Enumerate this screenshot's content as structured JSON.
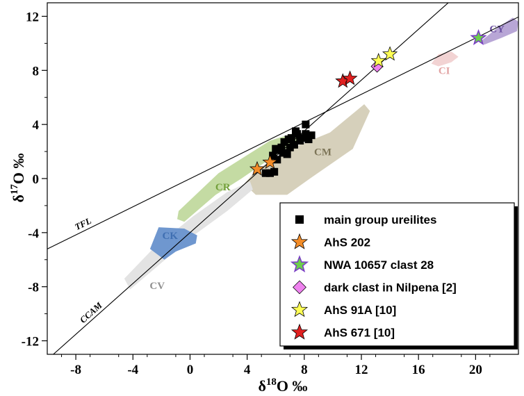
{
  "chart_data": {
    "type": "scatter",
    "xlabel": "δ18O ‰",
    "ylabel": "δ17O ‰",
    "xlim": [
      -10,
      23
    ],
    "ylim": [
      -13,
      13
    ],
    "x_ticks": [
      -8,
      -4,
      0,
      4,
      8,
      12,
      16,
      20
    ],
    "y_ticks": [
      -12,
      -8,
      -4,
      0,
      4,
      8,
      12
    ],
    "x_tick_labels": [
      "-8",
      "-4",
      "0",
      "4",
      "8",
      "12",
      "16",
      "20"
    ],
    "y_tick_labels": [
      "-12",
      "-8",
      "-4",
      "0",
      "4",
      "8",
      "12"
    ],
    "reference_lines": [
      {
        "name": "TFL",
        "slope": 0.52,
        "intercept": -0.01
      },
      {
        "name": "CCAM",
        "slope": 0.94,
        "intercept": -4.0
      }
    ],
    "regions": [
      {
        "name": "CY",
        "color": "#b8a6d6",
        "label_color": "#6a4fa0",
        "polygon": [
          [
            20.3,
            10.1
          ],
          [
            21.6,
            11.2
          ],
          [
            22.6,
            11.9
          ],
          [
            23.0,
            11.6
          ],
          [
            22.9,
            10.9
          ],
          [
            21.8,
            10.4
          ],
          [
            20.6,
            9.9
          ]
        ]
      },
      {
        "name": "CI",
        "color": "#f2d3d3",
        "label_color": "#e2a3a3",
        "polygon": [
          [
            16.9,
            8.5
          ],
          [
            17.4,
            9.2
          ],
          [
            18.3,
            9.4
          ],
          [
            18.8,
            9.0
          ],
          [
            18.3,
            8.6
          ],
          [
            17.4,
            8.3
          ]
        ]
      },
      {
        "name": "CM",
        "color": "#d6d0bb",
        "label_color": "#7d7558",
        "polygon": [
          [
            4.6,
            0.6
          ],
          [
            7.0,
            2.2
          ],
          [
            9.8,
            3.4
          ],
          [
            12.2,
            5.5
          ],
          [
            12.6,
            5.0
          ],
          [
            11.4,
            2.2
          ],
          [
            8.4,
            0.0
          ],
          [
            6.8,
            -1.2
          ],
          [
            4.6,
            -1.2
          ],
          [
            3.8,
            -0.4
          ]
        ]
      },
      {
        "name": "CR",
        "color": "#c4dba3",
        "label_color": "#74a13c",
        "polygon": [
          [
            -0.8,
            -2.4
          ],
          [
            2.0,
            0.4
          ],
          [
            5.6,
            2.8
          ],
          [
            7.4,
            3.4
          ],
          [
            7.6,
            2.8
          ],
          [
            5.8,
            1.6
          ],
          [
            3.6,
            0.0
          ],
          [
            1.8,
            -1.2
          ],
          [
            -0.4,
            -3.2
          ],
          [
            -0.9,
            -3.0
          ]
        ]
      },
      {
        "name": "CV",
        "color": "#e3e3e3",
        "label_color": "#909090",
        "polygon": [
          [
            -4.2,
            -8.2
          ],
          [
            -2.4,
            -6.6
          ],
          [
            0.0,
            -4.4
          ],
          [
            2.6,
            -2.4
          ],
          [
            4.4,
            -0.8
          ],
          [
            4.2,
            -0.2
          ],
          [
            2.6,
            -1.0
          ],
          [
            0.2,
            -2.8
          ],
          [
            -2.6,
            -5.2
          ],
          [
            -4.6,
            -7.4
          ]
        ]
      },
      {
        "name": "CK",
        "color": "#6f97cf",
        "label_color": "#3f6fb2",
        "polygon": [
          [
            -2.8,
            -5.2
          ],
          [
            -2.2,
            -3.6
          ],
          [
            -0.4,
            -3.7
          ],
          [
            0.5,
            -4.2
          ],
          [
            0.4,
            -4.8
          ],
          [
            -1.0,
            -5.4
          ],
          [
            -1.8,
            -6.0
          ]
        ]
      }
    ],
    "series": [
      {
        "name": "main group ureilites",
        "marker": "square",
        "color": "#000000",
        "points": [
          [
            5.3,
            0.4
          ],
          [
            5.6,
            0.4
          ],
          [
            5.9,
            0.5
          ],
          [
            6.1,
            1.4
          ],
          [
            5.8,
            1.7
          ],
          [
            6.2,
            2.1
          ],
          [
            6.8,
            1.8
          ],
          [
            6.4,
            2.3
          ],
          [
            6.6,
            2.7
          ],
          [
            6.9,
            2.9
          ],
          [
            7.1,
            3.0
          ],
          [
            7.3,
            2.5
          ],
          [
            7.5,
            3.3
          ],
          [
            7.7,
            2.8
          ],
          [
            7.9,
            3.0
          ],
          [
            8.1,
            3.3
          ],
          [
            8.3,
            2.9
          ],
          [
            7.4,
            3.5
          ],
          [
            7.0,
            2.3
          ],
          [
            6.5,
            1.9
          ],
          [
            8.1,
            4.0
          ],
          [
            8.5,
            3.2
          ],
          [
            6.0,
            2.2
          ]
        ]
      },
      {
        "name": "AhS 202",
        "marker": "star",
        "color": "#f28c28",
        "points": [
          [
            4.7,
            0.7
          ],
          [
            5.6,
            1.2
          ]
        ]
      },
      {
        "name": "NWA 10657 clast 28",
        "marker": "star",
        "color": "#6ccf4a",
        "edge": "#7a3fc4",
        "points": [
          [
            20.2,
            10.4
          ]
        ]
      },
      {
        "name": "dark clast in Nilpena [2]",
        "marker": "diamond",
        "color": "#ee82ee",
        "points": [
          [
            13.1,
            8.3
          ]
        ]
      },
      {
        "name": "AhS 91A [10]",
        "marker": "star",
        "color": "#ffff55",
        "points": [
          [
            13.2,
            8.7
          ],
          [
            14.0,
            9.2
          ]
        ]
      },
      {
        "name": "AhS 671 [10]",
        "marker": "star",
        "color": "#e02020",
        "points": [
          [
            10.7,
            7.2
          ],
          [
            11.2,
            7.4
          ]
        ]
      }
    ],
    "legend_position": "bottom-right"
  }
}
